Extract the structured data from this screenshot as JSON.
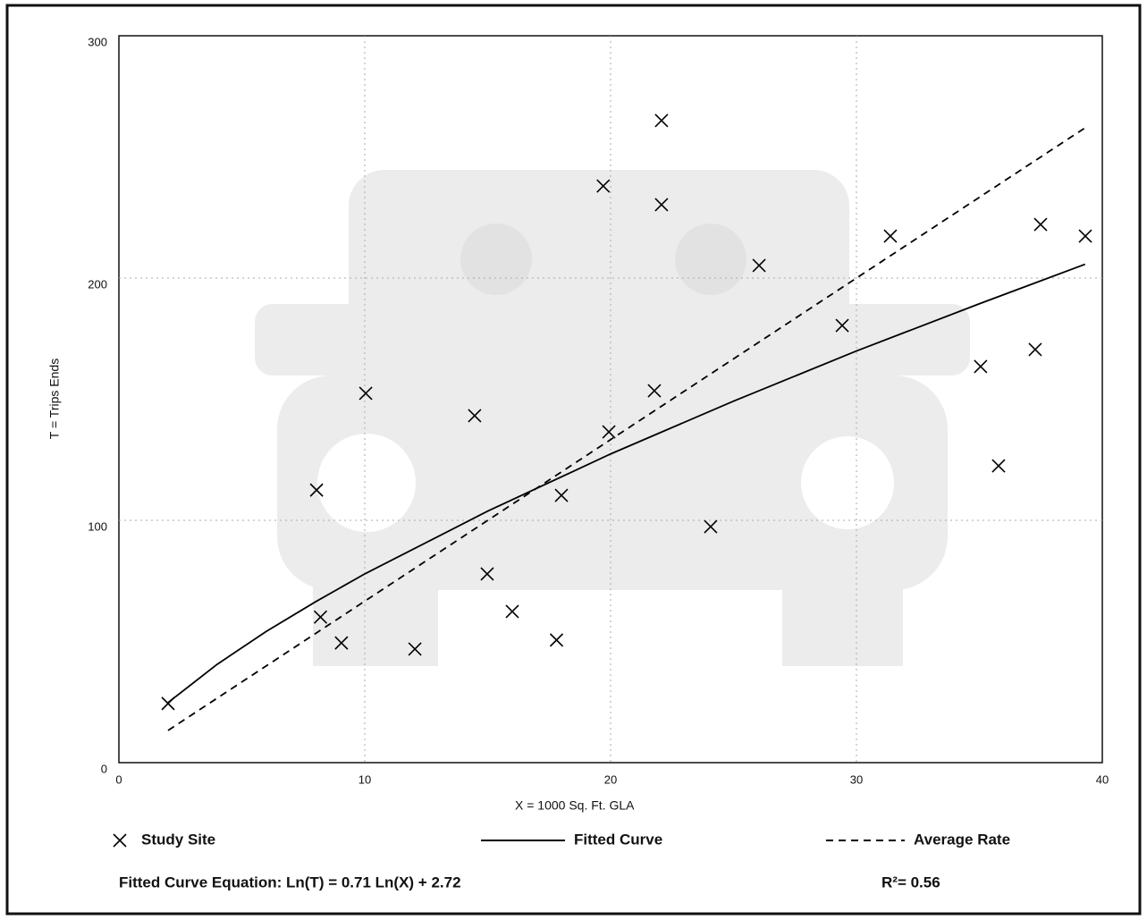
{
  "chart_data": {
    "type": "scatter",
    "x_label": "X = 1000 Sq. Ft. GLA",
    "y_label": "T = Trips Ends",
    "xlim": [
      0,
      40
    ],
    "xticks": [
      0,
      10,
      20,
      30,
      40
    ],
    "ylim": [
      0,
      300
    ],
    "yticks": [
      0,
      100,
      200,
      300
    ],
    "grid": true,
    "series": [
      {
        "name": "Study Site",
        "type": "scatter",
        "color": "#000000",
        "x": [
          2.0,
          8.04,
          8.2,
          9.05,
          10.04,
          12.04,
          14.47,
          14.98,
          16.0,
          17.8,
          18.0,
          19.7,
          19.93,
          21.78,
          22.07,
          22.07,
          24.07,
          26.04,
          29.42,
          31.38,
          35.05,
          35.78,
          37.27,
          37.49,
          39.31
        ],
        "values": [
          24.4,
          112.5,
          60.1,
          49.4,
          152.4,
          46.9,
          143.2,
          77.9,
          62.4,
          50.6,
          110.3,
          238.0,
          136.5,
          153.5,
          265,
          230.3,
          97.4,
          205.2,
          180.4,
          217.3,
          163.5,
          122.5,
          170.5,
          222.1,
          217.3
        ]
      },
      {
        "name": "Fitted Curve",
        "type": "line",
        "dash": "solid",
        "color": "#000000",
        "x": [
          2,
          4,
          6,
          8,
          10,
          15,
          20,
          25,
          30,
          35,
          39.3
        ],
        "values": [
          24.8,
          40.6,
          54.2,
          66.4,
          77.9,
          103.8,
          127.4,
          149.2,
          169.9,
          189.4,
          205.7
        ]
      },
      {
        "name": "Average Rate",
        "type": "line",
        "dash": "dashed",
        "color": "#000000",
        "x": [
          2,
          39.3
        ],
        "values": [
          13.3,
          262
        ]
      }
    ],
    "equation": "Fitted Curve Equation: Ln(T) = 0.71 Ln(X) + 2.72",
    "r_squared": "R²= 0.56"
  }
}
